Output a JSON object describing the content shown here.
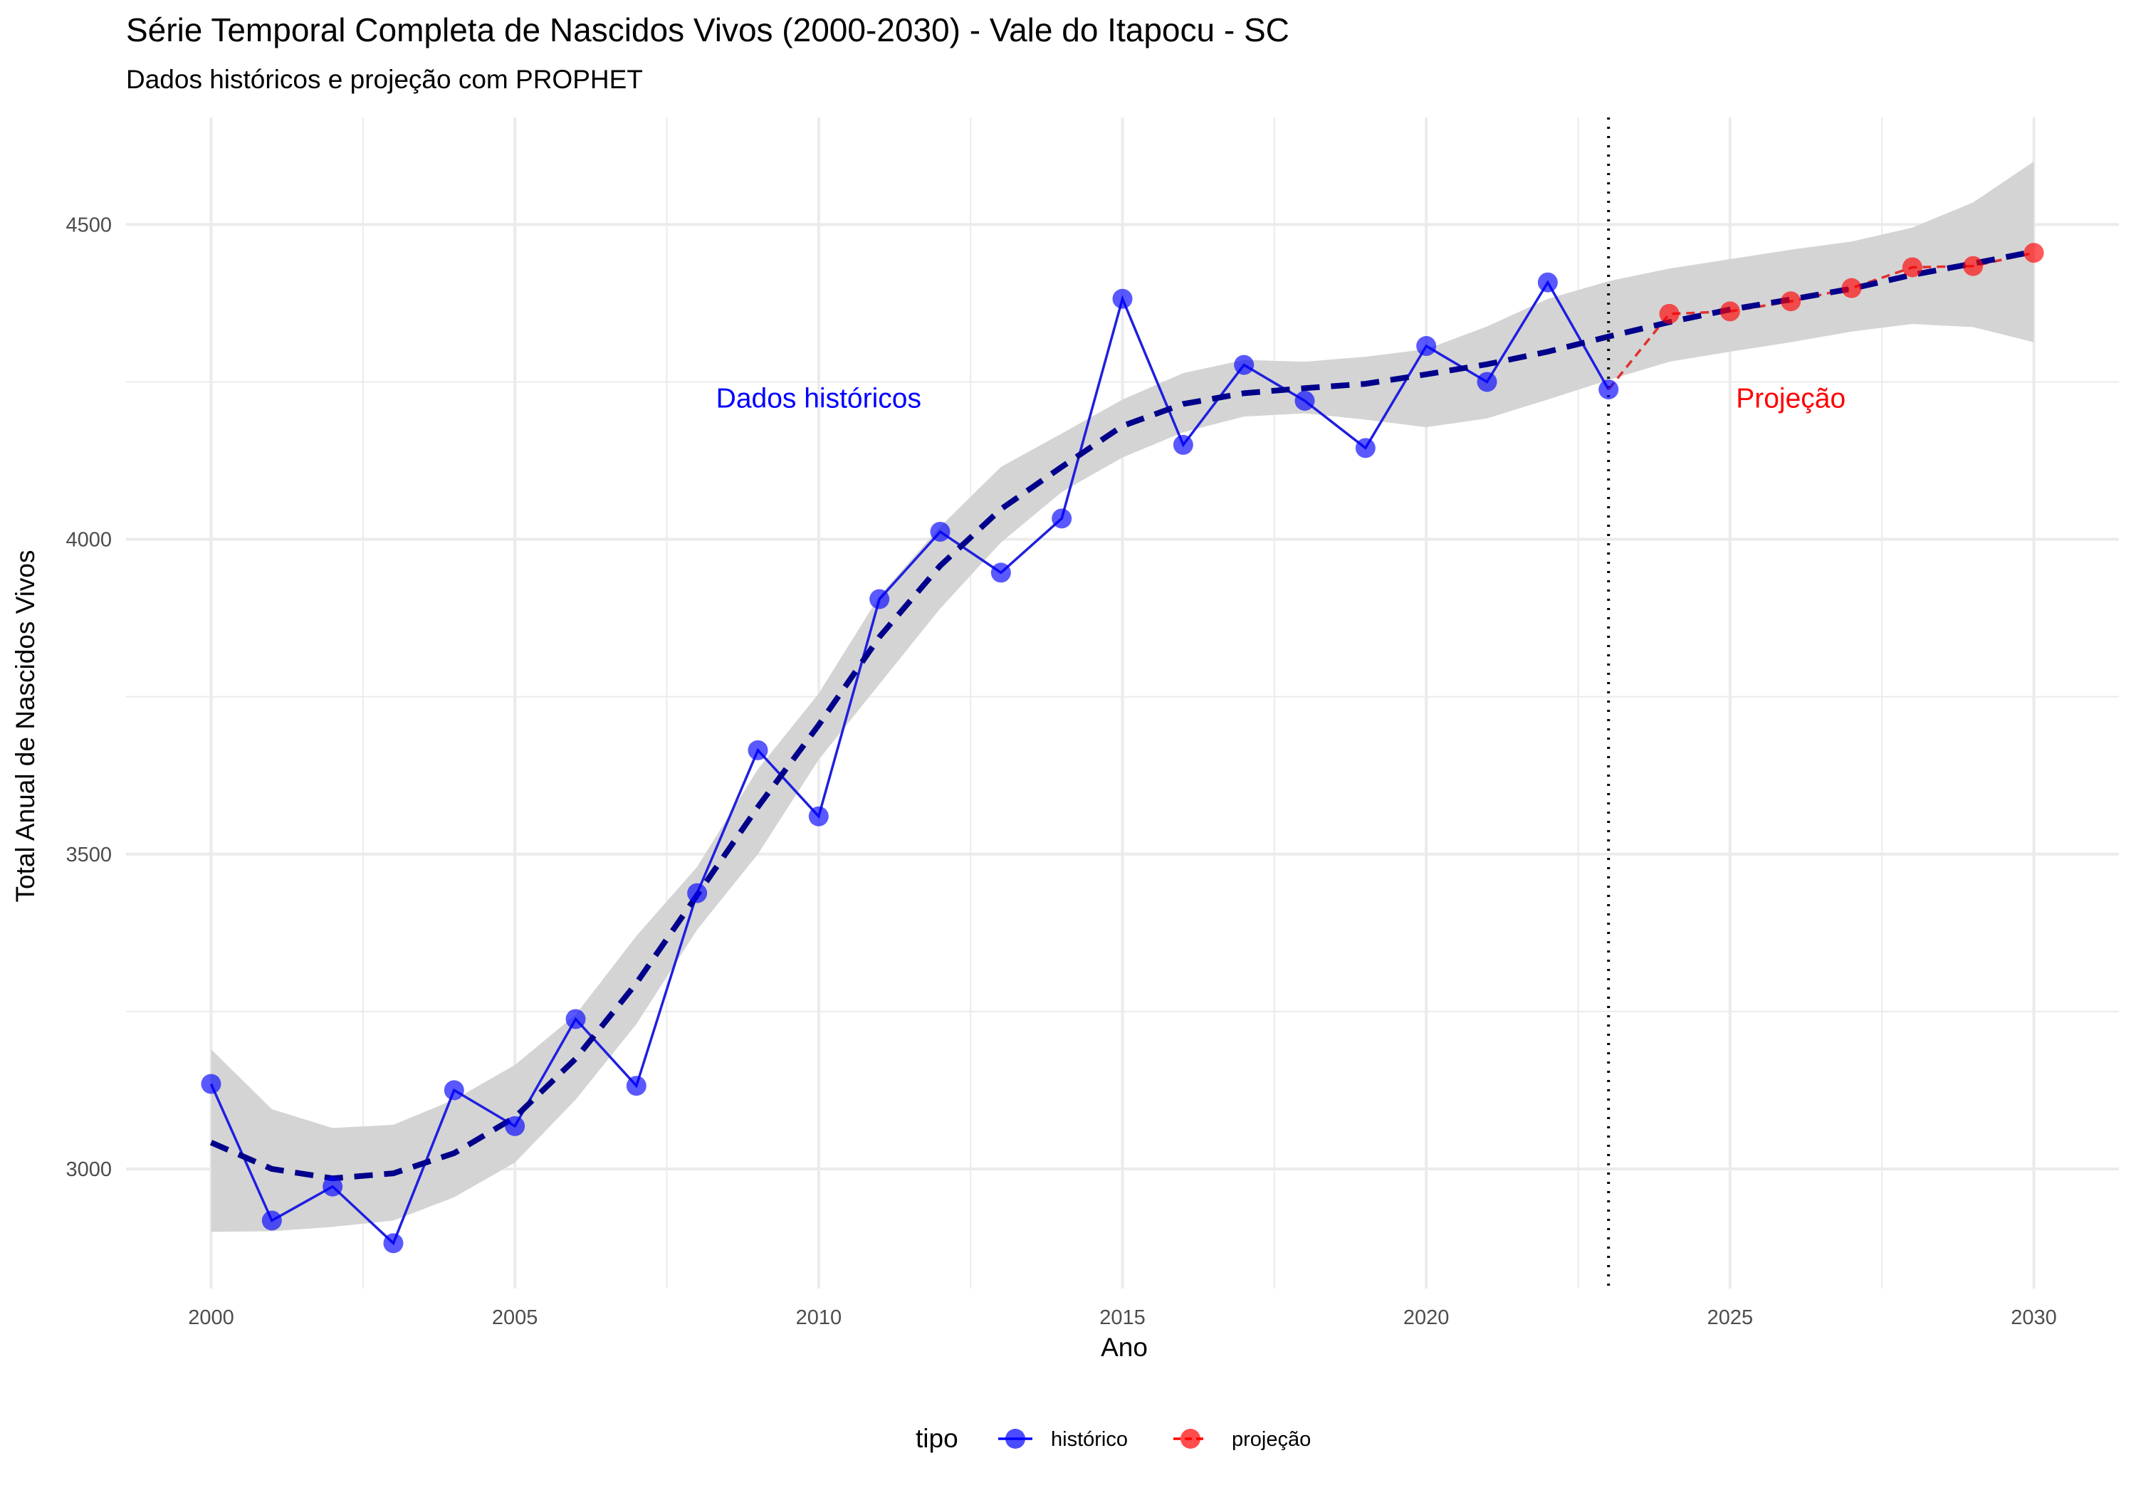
{
  "chart_data": {
    "type": "line",
    "title": "Série Temporal Completa de Nascidos Vivos (2000-2030) -  Vale do Itapocu - SC",
    "subtitle": "Dados históricos e projeção com PROPHET",
    "xlabel": "Ano",
    "ylabel": "Total Anual de Nascidos Vivos",
    "xlim": [
      1998.6,
      2031.4
    ],
    "ylim": [
      2810,
      4670
    ],
    "x_ticks": [
      2000,
      2005,
      2010,
      2015,
      2020,
      2025,
      2030
    ],
    "y_ticks": [
      3000,
      3500,
      4000,
      4500
    ],
    "grid": true,
    "legend": {
      "title": "tipo",
      "position": "bottom",
      "entries": [
        {
          "label": "histórico",
          "color": "#0000ff"
        },
        {
          "label": "projeção",
          "color": "#ff0000"
        }
      ]
    },
    "vline": {
      "x": 2023,
      "style": "dotted"
    },
    "annotations": [
      {
        "text": "Dados históricos",
        "x": 2010,
        "y": 4225,
        "color": "#0000ff"
      },
      {
        "text": "Projeção",
        "x": 2026,
        "y": 4225,
        "color": "#ff0000"
      }
    ],
    "series": [
      {
        "name": "histórico",
        "color": "#0000ff",
        "x": [
          2000,
          2001,
          2002,
          2003,
          2004,
          2005,
          2006,
          2007,
          2008,
          2009,
          2010,
          2011,
          2012,
          2013,
          2014,
          2015,
          2016,
          2017,
          2018,
          2019,
          2020,
          2021,
          2022,
          2023
        ],
        "values": [
          3135,
          2918,
          2972,
          2882,
          3125,
          3068,
          3238,
          3132,
          3438,
          3665,
          3560,
          3905,
          4012,
          3947,
          4033,
          4382,
          4150,
          4277,
          4220,
          4145,
          4307,
          4250,
          4408,
          4238
        ]
      },
      {
        "name": "projeção",
        "color": "#ff0000",
        "x": [
          2023,
          2024,
          2025,
          2026,
          2027,
          2028,
          2029,
          2030
        ],
        "values": [
          4238,
          4358,
          4362,
          4378,
          4399,
          4432,
          4434,
          4455
        ]
      }
    ],
    "trend": {
      "style": "dashed",
      "color": "#00008b",
      "x": [
        2000,
        2001,
        2002,
        2003,
        2004,
        2005,
        2006,
        2007,
        2008,
        2009,
        2010,
        2011,
        2012,
        2013,
        2014,
        2015,
        2016,
        2017,
        2018,
        2019,
        2020,
        2021,
        2022,
        2023,
        2024,
        2025,
        2026,
        2027,
        2028,
        2029,
        2030
      ],
      "values": [
        3042,
        3000,
        2985,
        2993,
        3025,
        3082,
        3175,
        3295,
        3435,
        3575,
        3705,
        3845,
        3958,
        4048,
        4115,
        4180,
        4215,
        4232,
        4240,
        4247,
        4262,
        4278,
        4298,
        4322,
        4345,
        4365,
        4381,
        4398,
        4420,
        4438,
        4457
      ]
    },
    "band": {
      "color": "#d4d4d4",
      "x": [
        2000,
        2001,
        2002,
        2003,
        2004,
        2005,
        2006,
        2007,
        2008,
        2009,
        2010,
        2011,
        2012,
        2013,
        2014,
        2015,
        2016,
        2017,
        2018,
        2019,
        2020,
        2021,
        2022,
        2023,
        2024,
        2025,
        2026,
        2027,
        2028,
        2029,
        2030
      ],
      "lower": [
        2900,
        2901,
        2908,
        2918,
        2955,
        3010,
        3110,
        3230,
        3380,
        3500,
        3650,
        3770,
        3890,
        3995,
        4075,
        4130,
        4170,
        4195,
        4200,
        4190,
        4178,
        4192,
        4222,
        4253,
        4282,
        4298,
        4313,
        4330,
        4342,
        4337,
        4313
      ],
      "upper": [
        3190,
        3095,
        3065,
        3070,
        3110,
        3165,
        3245,
        3370,
        3480,
        3635,
        3755,
        3910,
        4020,
        4115,
        4168,
        4222,
        4264,
        4285,
        4282,
        4290,
        4302,
        4338,
        4382,
        4410,
        4430,
        4445,
        4460,
        4473,
        4495,
        4535,
        4600
      ]
    }
  }
}
